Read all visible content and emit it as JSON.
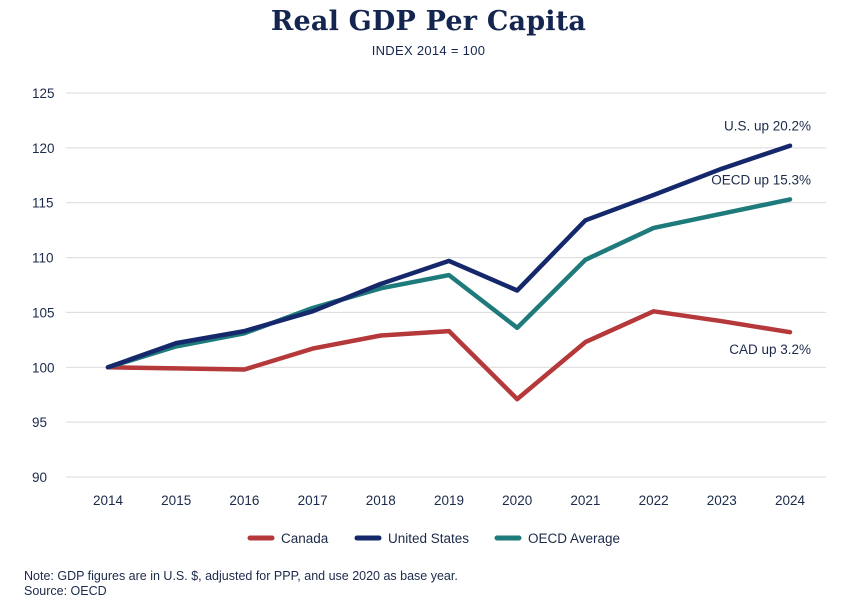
{
  "chart_data": {
    "type": "line",
    "title": "Real GDP Per Capita",
    "subtitle": "INDEX 2014 = 100",
    "xlabel": "",
    "ylabel": "",
    "x": [
      "2014",
      "2015",
      "2016",
      "2017",
      "2018",
      "2019",
      "2020",
      "2021",
      "2022",
      "2023",
      "2024"
    ],
    "ylim": [
      90,
      125
    ],
    "yticks": [
      90,
      95,
      100,
      105,
      110,
      115,
      120,
      125
    ],
    "grid": true,
    "legend_position": "bottom",
    "series": [
      {
        "name": "Canada",
        "color": "#b5383a",
        "values": [
          100,
          99.9,
          99.8,
          101.7,
          102.9,
          103.3,
          97.1,
          102.3,
          105.1,
          104.2,
          103.2
        ],
        "end_label": "CAD up 3.2%"
      },
      {
        "name": "United States",
        "color": "#14286b",
        "values": [
          100,
          102.2,
          103.3,
          105.1,
          107.6,
          109.7,
          107.0,
          113.4,
          115.7,
          118.1,
          120.2
        ],
        "end_label": "U.S. up 20.2%"
      },
      {
        "name": "OECD Average",
        "color": "#1f7a7c",
        "values": [
          100,
          101.9,
          103.1,
          105.4,
          107.2,
          108.4,
          103.6,
          109.8,
          112.7,
          114.0,
          115.3
        ],
        "end_label": "OECD up 15.3%"
      }
    ]
  },
  "footer": {
    "note": "Note: GDP figures are in U.S. $, adjusted for PPP, and use 2020 as base year.",
    "source": "Source: OECD"
  }
}
